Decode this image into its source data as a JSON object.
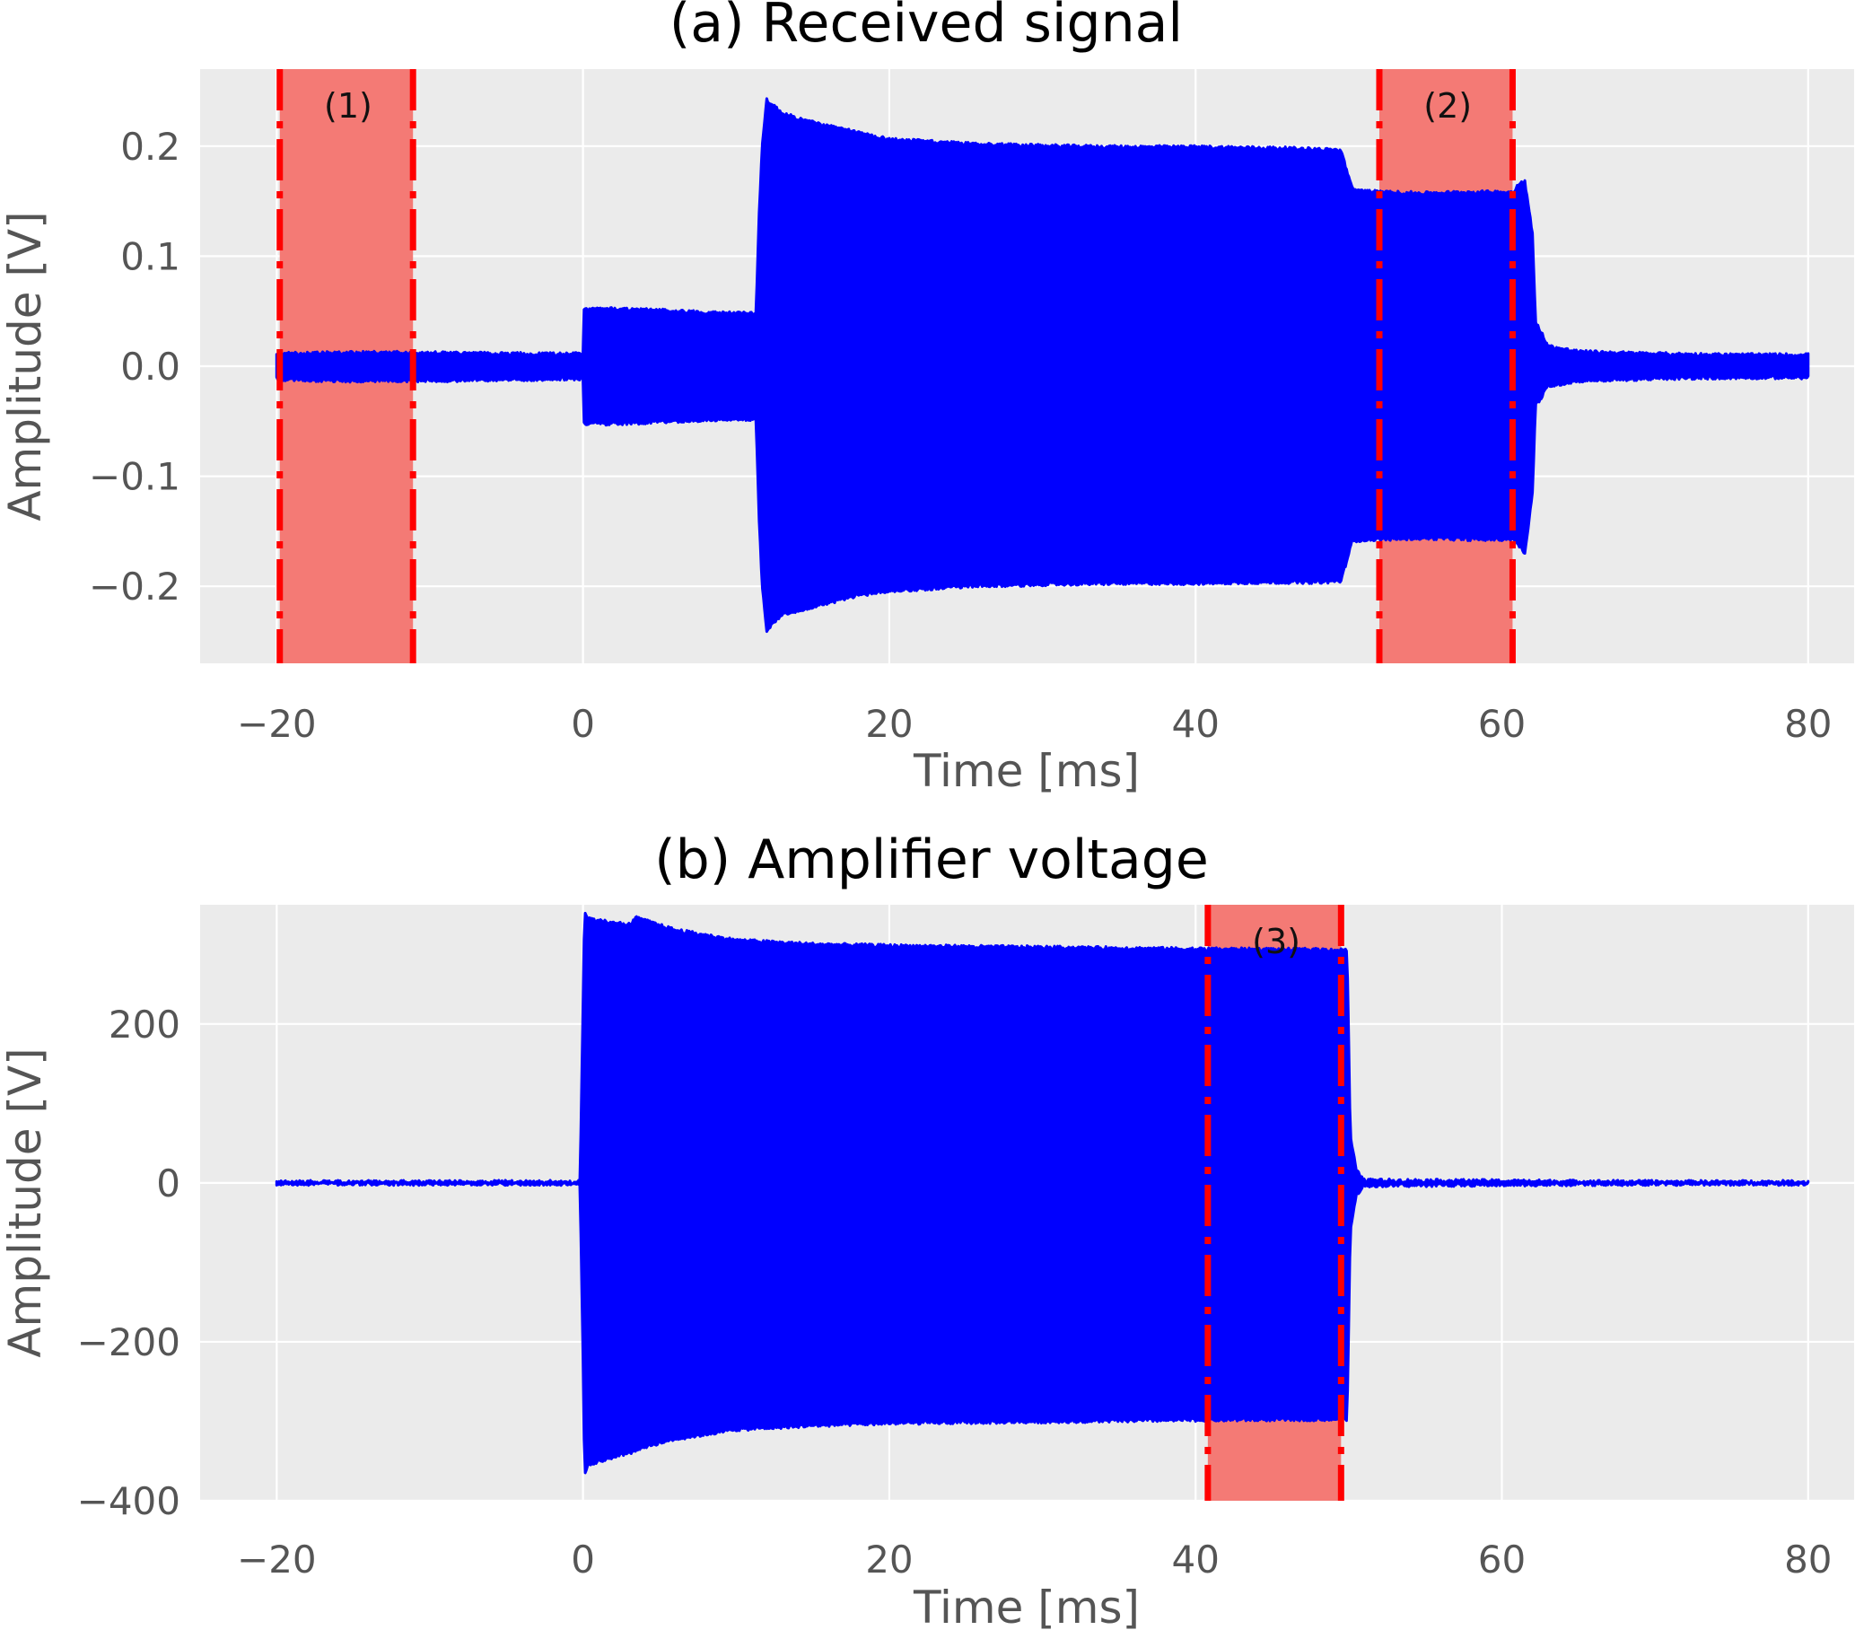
{
  "chart_data": [
    {
      "type": "line",
      "title": "(a) Received signal",
      "xlabel": "Time [ms]",
      "ylabel": "Amplitude [V]",
      "xlim": [
        -25,
        83
      ],
      "ylim": [
        -0.27,
        0.27
      ],
      "xticks": [
        -20,
        0,
        20,
        40,
        60,
        80
      ],
      "xtick_labels": [
        "−20",
        "0",
        "20",
        "40",
        "60",
        "80"
      ],
      "yticks": [
        -0.2,
        -0.1,
        0.0,
        0.1,
        0.2
      ],
      "ytick_labels": [
        "−0.2",
        "−0.1",
        "0.0",
        "0.1",
        "0.2"
      ],
      "grid": true,
      "style": "ggplot",
      "series_color": "#0000ff",
      "region_fill": "#f47a75",
      "region_line": "#ff0000",
      "regions": [
        {
          "label": "(1)",
          "x0": -19.8,
          "x1": -11.1
        },
        {
          "label": "(2)",
          "x0": 52.0,
          "x1": 60.7
        }
      ],
      "envelope": {
        "t": [
          -20.0,
          -19.8,
          -15,
          -11,
          -5,
          0.0,
          0.05,
          2,
          6,
          9,
          11.3,
          11.5,
          11.7,
          12.0,
          13,
          14,
          16,
          18,
          20,
          25,
          30,
          35,
          40,
          45,
          48,
          49.5,
          50.2,
          50.5,
          52,
          55,
          58,
          60.8,
          61,
          61.5,
          62,
          62.2,
          62.6,
          63,
          65,
          70,
          75,
          80.0
        ],
        "upper": [
          0.01,
          0.011,
          0.012,
          0.012,
          0.011,
          0.011,
          0.052,
          0.052,
          0.05,
          0.048,
          0.048,
          0.14,
          0.2,
          0.242,
          0.23,
          0.225,
          0.218,
          0.212,
          0.206,
          0.202,
          0.2,
          0.199,
          0.199,
          0.198,
          0.197,
          0.196,
          0.162,
          0.16,
          0.158,
          0.157,
          0.158,
          0.158,
          0.165,
          0.168,
          0.12,
          0.04,
          0.03,
          0.018,
          0.013,
          0.011,
          0.01,
          0.01
        ],
        "lower": [
          -0.01,
          -0.012,
          -0.013,
          -0.013,
          -0.012,
          -0.011,
          -0.052,
          -0.052,
          -0.05,
          -0.048,
          -0.048,
          -0.14,
          -0.2,
          -0.24,
          -0.225,
          -0.222,
          -0.215,
          -0.208,
          -0.204,
          -0.2,
          -0.198,
          -0.197,
          -0.197,
          -0.196,
          -0.196,
          -0.195,
          -0.16,
          -0.158,
          -0.157,
          -0.156,
          -0.157,
          -0.157,
          -0.16,
          -0.17,
          -0.115,
          -0.035,
          -0.028,
          -0.018,
          -0.013,
          -0.011,
          -0.01,
          -0.01
        ]
      }
    },
    {
      "type": "line",
      "title": "(b) Amplifier voltage",
      "xlabel": "Time [ms]",
      "ylabel": "Amplitude [V]",
      "xlim": [
        -25,
        83
      ],
      "ylim": [
        -400,
        350
      ],
      "xticks": [
        -20,
        0,
        20,
        40,
        60,
        80
      ],
      "xtick_labels": [
        "−20",
        "0",
        "20",
        "40",
        "60",
        "80"
      ],
      "yticks": [
        -400,
        -200,
        0,
        200
      ],
      "ytick_labels": [
        "−400",
        "−200",
        "0",
        "200"
      ],
      "grid": true,
      "style": "ggplot",
      "series_color": "#0000ff",
      "region_fill": "#f47a75",
      "region_line": "#ff0000",
      "regions": [
        {
          "label": "(3)",
          "x0": 40.8,
          "x1": 49.5
        }
      ],
      "envelope": {
        "t": [
          -20.0,
          -0.2,
          0.0,
          0.1,
          0.3,
          1,
          3,
          3.5,
          4,
          6,
          10,
          15,
          20,
          30,
          40,
          49.5,
          49.9,
          50.1,
          50.5,
          51,
          60,
          70,
          80.0
        ],
        "upper": [
          1,
          1,
          220,
          340,
          332,
          330,
          325,
          333,
          330,
          318,
          305,
          300,
          298,
          296,
          294,
          293,
          293,
          60,
          15,
          3,
          2,
          1,
          1
        ],
        "lower": [
          -1,
          -1,
          -220,
          -365,
          -355,
          -350,
          -340,
          -335,
          -332,
          -322,
          -310,
          -305,
          -302,
          -300,
          -298,
          -297,
          -297,
          -60,
          -15,
          -3,
          -2,
          -1,
          -1
        ]
      }
    }
  ]
}
